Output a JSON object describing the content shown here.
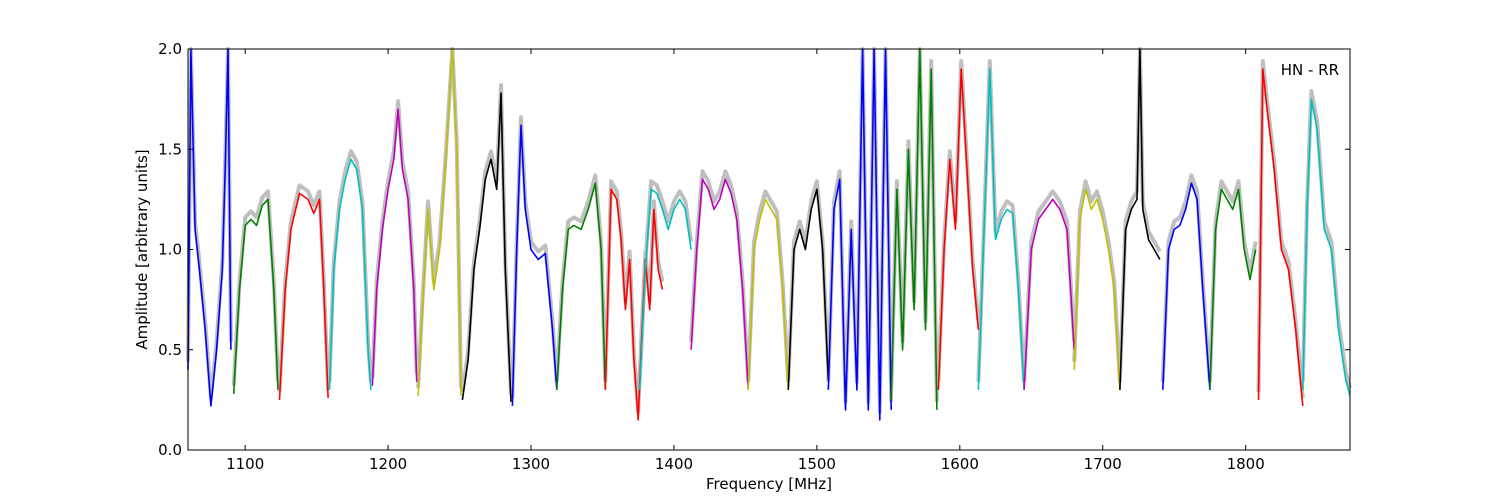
{
  "chart_data": {
    "type": "line",
    "title": "",
    "xlabel": "Frequency [MHz]",
    "ylabel": "Amplitude [arbitrary units]",
    "xlim": [
      1060,
      1873
    ],
    "ylim": [
      0.0,
      2.0
    ],
    "xticks": [
      1100,
      1200,
      1300,
      1400,
      1500,
      1600,
      1700,
      1800
    ],
    "xtick_labels": [
      "1100",
      "1200",
      "1300",
      "1400",
      "1500",
      "1600",
      "1700",
      "1800"
    ],
    "yticks": [
      0.0,
      0.5,
      1.0,
      1.5,
      2.0
    ],
    "ytick_labels": [
      "0.0",
      "0.5",
      "1.0",
      "1.5",
      "2.0"
    ],
    "grid": false,
    "annotation": "HN - RR",
    "background_series_color": "#bfbfbf",
    "segment_colors": [
      "#0000ff",
      "#008000",
      "#ff0000",
      "#00bfbf",
      "#bf00bf",
      "#bfbf00",
      "#000000"
    ],
    "segments": [
      {
        "color": "#0000ff",
        "x": [
          1060,
          1062,
          1065,
          1068,
          1072,
          1076,
          1080,
          1084,
          1086,
          1088,
          1090
        ],
        "y": [
          0.4,
          2.0,
          1.1,
          0.9,
          0.6,
          0.22,
          0.5,
          0.9,
          1.4,
          2.0,
          0.5
        ]
      },
      {
        "color": "#008000",
        "x": [
          1092,
          1096,
          1100,
          1104,
          1108,
          1112,
          1116,
          1120,
          1123
        ],
        "y": [
          0.28,
          0.8,
          1.12,
          1.15,
          1.12,
          1.22,
          1.25,
          0.8,
          0.3
        ]
      },
      {
        "color": "#ff0000",
        "x": [
          1124,
          1128,
          1132,
          1138,
          1144,
          1148,
          1152,
          1155,
          1158
        ],
        "y": [
          0.25,
          0.8,
          1.1,
          1.28,
          1.25,
          1.18,
          1.25,
          0.8,
          0.26
        ]
      },
      {
        "color": "#00bfbf",
        "x": [
          1159,
          1162,
          1166,
          1170,
          1174,
          1178,
          1182,
          1186,
          1188
        ],
        "y": [
          0.3,
          0.9,
          1.2,
          1.35,
          1.45,
          1.4,
          1.2,
          0.5,
          0.3
        ]
      },
      {
        "color": "#bf00bf",
        "x": [
          1189,
          1192,
          1196,
          1200,
          1204,
          1207,
          1210,
          1214,
          1218,
          1220
        ],
        "y": [
          0.32,
          0.8,
          1.1,
          1.3,
          1.45,
          1.7,
          1.4,
          1.25,
          0.8,
          0.34
        ]
      },
      {
        "color": "#bfbf00",
        "x": [
          1221,
          1224,
          1228,
          1232,
          1236,
          1240,
          1245,
          1248,
          1251
        ],
        "y": [
          0.27,
          0.7,
          1.2,
          0.8,
          1.0,
          1.4,
          2.0,
          1.5,
          0.27
        ]
      },
      {
        "color": "#000000",
        "x": [
          1252,
          1256,
          1260,
          1264,
          1268,
          1272,
          1276,
          1279,
          1282,
          1286
        ],
        "y": [
          0.25,
          0.45,
          0.9,
          1.1,
          1.35,
          1.45,
          1.3,
          1.78,
          0.9,
          0.24
        ]
      },
      {
        "color": "#0000ff",
        "x": [
          1287,
          1290,
          1293,
          1296,
          1300,
          1305,
          1310,
          1315,
          1318
        ],
        "y": [
          0.22,
          1.0,
          1.62,
          1.2,
          1.0,
          0.95,
          0.98,
          0.6,
          0.3
        ]
      },
      {
        "color": "#008000",
        "x": [
          1318,
          1322,
          1326,
          1330,
          1335,
          1340,
          1345,
          1349,
          1352
        ],
        "y": [
          0.3,
          0.8,
          1.1,
          1.12,
          1.1,
          1.2,
          1.33,
          1.0,
          0.3
        ]
      },
      {
        "color": "#ff0000",
        "x": [
          1352,
          1356,
          1360,
          1363,
          1366,
          1369,
          1372,
          1375,
          1377,
          1380,
          1383,
          1386,
          1389,
          1392
        ],
        "y": [
          0.3,
          1.3,
          1.25,
          1.05,
          0.7,
          0.95,
          0.45,
          0.15,
          0.5,
          0.95,
          0.7,
          1.2,
          0.9,
          0.8
        ]
      },
      {
        "color": "#00bfbf",
        "x": [
          1376,
          1380,
          1384,
          1388,
          1392,
          1396,
          1400,
          1404,
          1408,
          1412
        ],
        "y": [
          0.3,
          0.9,
          1.3,
          1.28,
          1.2,
          1.1,
          1.2,
          1.25,
          1.2,
          1.0
        ]
      },
      {
        "color": "#bf00bf",
        "x": [
          1412,
          1416,
          1420,
          1424,
          1428,
          1432,
          1436,
          1440,
          1444,
          1448,
          1452
        ],
        "y": [
          0.5,
          1.0,
          1.35,
          1.3,
          1.2,
          1.25,
          1.35,
          1.28,
          1.15,
          0.8,
          0.3
        ]
      },
      {
        "color": "#bfbf00",
        "x": [
          1452,
          1456,
          1460,
          1464,
          1468,
          1472,
          1476,
          1480
        ],
        "y": [
          0.3,
          1.0,
          1.15,
          1.25,
          1.2,
          1.15,
          0.8,
          0.3
        ]
      },
      {
        "color": "#000000",
        "x": [
          1480,
          1484,
          1488,
          1492,
          1496,
          1500,
          1504,
          1508
        ],
        "y": [
          0.3,
          1.0,
          1.1,
          1.0,
          1.2,
          1.3,
          1.0,
          0.35
        ]
      },
      {
        "color": "#0000ff",
        "x": [
          1508,
          1512,
          1516,
          1520,
          1524,
          1528,
          1532,
          1536,
          1540,
          1544,
          1548,
          1552
        ],
        "y": [
          0.3,
          1.2,
          1.35,
          0.2,
          1.1,
          0.3,
          2.0,
          0.2,
          2.0,
          0.15,
          2.0,
          0.2
        ]
      },
      {
        "color": "#008000",
        "x": [
          1552,
          1556,
          1560,
          1564,
          1568,
          1572,
          1576,
          1580,
          1584
        ],
        "y": [
          0.25,
          1.3,
          0.5,
          1.5,
          0.7,
          2.0,
          0.6,
          1.9,
          0.2
        ]
      },
      {
        "color": "#ff0000",
        "x": [
          1585,
          1589,
          1593,
          1597,
          1601,
          1605,
          1609,
          1613
        ],
        "y": [
          0.3,
          1.0,
          1.45,
          1.1,
          1.9,
          1.4,
          0.9,
          0.6
        ]
      },
      {
        "color": "#00bfbf",
        "x": [
          1613,
          1617,
          1621,
          1625,
          1629,
          1633,
          1637,
          1641,
          1645
        ],
        "y": [
          0.3,
          1.1,
          1.9,
          1.05,
          1.15,
          1.2,
          1.18,
          0.8,
          0.3
        ]
      },
      {
        "color": "#bf00bf",
        "x": [
          1645,
          1650,
          1655,
          1660,
          1665,
          1670,
          1675,
          1680
        ],
        "y": [
          0.3,
          1.0,
          1.15,
          1.2,
          1.25,
          1.2,
          1.1,
          0.5
        ]
      },
      {
        "color": "#bfbf00",
        "x": [
          1680,
          1684,
          1688,
          1692,
          1696,
          1700,
          1704,
          1708,
          1712
        ],
        "y": [
          0.4,
          1.15,
          1.3,
          1.2,
          1.25,
          1.15,
          1.0,
          0.8,
          0.3
        ]
      },
      {
        "color": "#000000",
        "x": [
          1712,
          1716,
          1720,
          1724,
          1726,
          1728,
          1732,
          1736,
          1740
        ],
        "y": [
          0.3,
          1.1,
          1.2,
          1.25,
          2.0,
          1.2,
          1.05,
          1.0,
          0.95
        ]
      },
      {
        "color": "#0000ff",
        "x": [
          1742,
          1746,
          1750,
          1754,
          1758,
          1762,
          1766,
          1770,
          1775
        ],
        "y": [
          0.3,
          1.0,
          1.1,
          1.12,
          1.2,
          1.33,
          1.25,
          0.8,
          0.3
        ]
      },
      {
        "color": "#008000",
        "x": [
          1775,
          1779,
          1783,
          1787,
          1791,
          1795,
          1799,
          1803,
          1807
        ],
        "y": [
          0.3,
          1.1,
          1.3,
          1.25,
          1.2,
          1.3,
          1.0,
          0.85,
          1.0
        ]
      },
      {
        "color": "#ff0000",
        "x": [
          1809,
          1812,
          1815,
          1820,
          1825,
          1830,
          1835,
          1840
        ],
        "y": [
          0.25,
          1.9,
          1.7,
          1.4,
          1.0,
          0.9,
          0.6,
          0.22
        ]
      },
      {
        "color": "#00bfbf",
        "x": [
          1840,
          1843,
          1846,
          1850,
          1855,
          1860,
          1865,
          1870,
          1873
        ],
        "y": [
          0.3,
          1.2,
          1.75,
          1.6,
          1.1,
          1.0,
          0.6,
          0.35,
          0.27
        ]
      }
    ]
  }
}
